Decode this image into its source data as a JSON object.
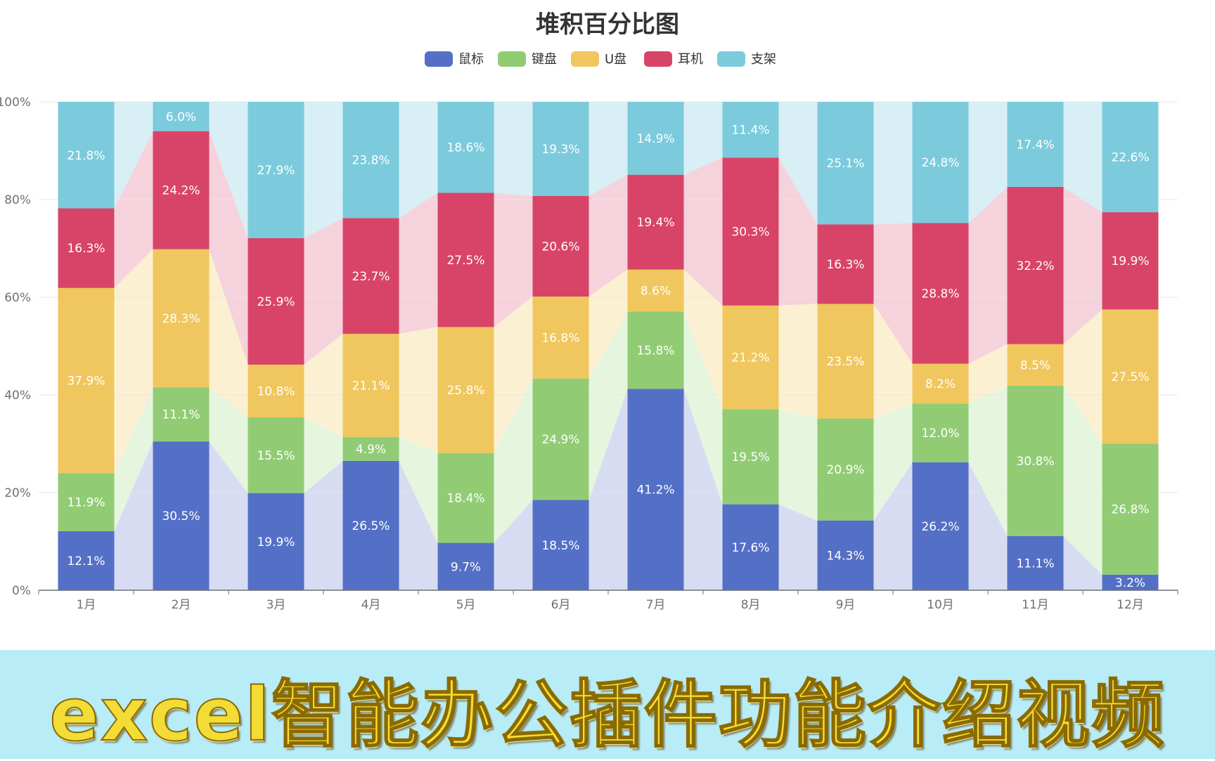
{
  "chart_data": {
    "type": "bar",
    "stacked": "percent",
    "title": "堆积百分比图",
    "legend_position": "top-center",
    "categories": [
      "1月",
      "2月",
      "3月",
      "4月",
      "5月",
      "6月",
      "7月",
      "8月",
      "9月",
      "10月",
      "11月",
      "12月"
    ],
    "ylim": [
      0,
      100
    ],
    "y_ticks": [
      "0%",
      "20%",
      "40%",
      "60%",
      "80%",
      "100%"
    ],
    "y_tick_values": [
      0,
      20,
      40,
      60,
      80,
      100
    ],
    "series": [
      {
        "name": "鼠标",
        "color": "#5470c6",
        "band": "#d8dcf2",
        "values": [
          12.1,
          30.5,
          19.9,
          26.5,
          9.7,
          18.5,
          41.2,
          17.6,
          14.3,
          26.2,
          11.1,
          3.2
        ],
        "labels": [
          "12.1%",
          "30.5%",
          "19.9%",
          "26.5%",
          "9.7%",
          "18.5%",
          "41.2%",
          "17.6%",
          "14.3%",
          "26.2%",
          "11.1%",
          "3.2%"
        ]
      },
      {
        "name": "键盘",
        "color": "#91cc75",
        "band": "#e6f6de",
        "values": [
          11.9,
          11.1,
          15.5,
          4.9,
          18.4,
          24.9,
          15.8,
          19.5,
          20.9,
          12.0,
          30.8,
          26.8
        ],
        "labels": [
          "11.9%",
          "11.1%",
          "15.5%",
          "4.9%",
          "18.4%",
          "24.9%",
          "15.8%",
          "19.5%",
          "20.9%",
          "12.0%",
          "30.8%",
          "26.8%"
        ]
      },
      {
        "name": "U盘",
        "color": "#f0c75e",
        "band": "#fcf0d2",
        "values": [
          37.9,
          28.3,
          10.8,
          21.1,
          25.8,
          16.8,
          8.6,
          21.2,
          23.5,
          8.2,
          8.5,
          27.5
        ],
        "labels": [
          "37.9%",
          "28.3%",
          "10.8%",
          "21.1%",
          "25.8%",
          "16.8%",
          "8.6%",
          "21.2%",
          "23.5%",
          "8.2%",
          "8.5%",
          "27.5%"
        ]
      },
      {
        "name": "耳机",
        "color": "#d84467",
        "band": "#f6d3dc",
        "values": [
          16.3,
          24.2,
          25.9,
          23.7,
          27.5,
          20.6,
          19.4,
          30.3,
          16.3,
          28.8,
          32.2,
          19.9
        ],
        "labels": [
          "16.3%",
          "24.2%",
          "25.9%",
          "23.7%",
          "27.5%",
          "20.6%",
          "19.4%",
          "30.3%",
          "16.3%",
          "28.8%",
          "32.2%",
          "19.9%"
        ]
      },
      {
        "name": "支架",
        "color": "#7ccbdc",
        "band": "#d8eff5",
        "values": [
          21.8,
          6.0,
          27.9,
          23.8,
          18.6,
          19.3,
          14.9,
          11.4,
          25.1,
          24.8,
          17.4,
          22.6
        ],
        "labels": [
          "21.8%",
          "6.0%",
          "27.9%",
          "23.8%",
          "18.6%",
          "19.3%",
          "14.9%",
          "11.4%",
          "25.1%",
          "24.8%",
          "17.4%",
          "22.6%"
        ]
      }
    ]
  },
  "banner": {
    "text": "excel智能办公插件功能介绍视频",
    "background": "#b8ecf7",
    "text_color": "#f4dc36"
  }
}
